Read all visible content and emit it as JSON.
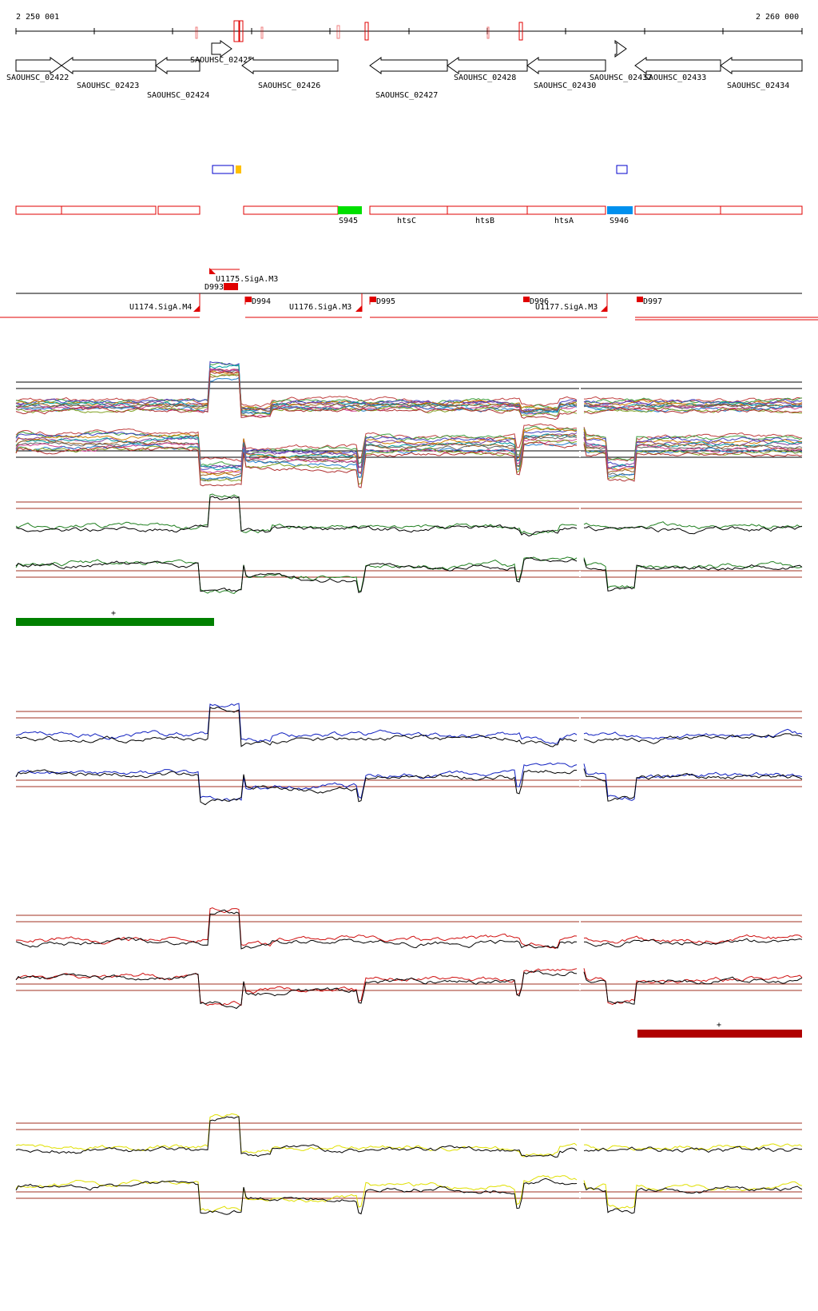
{
  "coords": {
    "start_label": "2 250 001",
    "end_label": "2 260 000"
  },
  "colors": {
    "cds": "#e00000",
    "green_bar": "#008000",
    "red_bar": "#b00000",
    "s945": "#00e000",
    "s946": "#0090ee",
    "promoter_box": "#0000cc",
    "small_box": "#ffc000",
    "green_profile": "#208020",
    "blue_profile": "#1020c0",
    "red_profile": "#d01010",
    "yellow_profile": "#e0e000",
    "ref_line": "#a03020"
  },
  "genes_row1": [
    {
      "label": "SAOUHSC_02422"
    },
    {
      "label": "SAOUHSC_02423"
    },
    {
      "label": "SAOUHSC_02424"
    },
    {
      "label": "SAOUHSC_02425"
    },
    {
      "label": "SAOUHSC_02426"
    },
    {
      "label": "SAOUHSC_02427"
    },
    {
      "label": "SAOUHSC_02428"
    },
    {
      "label": "SAOUHSC_02430"
    },
    {
      "label": "SAOUHSC_02432"
    },
    {
      "label": "SAOUHSC_02433"
    },
    {
      "label": "SAOUHSC_02434"
    }
  ],
  "operon_labels": {
    "s945": "S945",
    "htsC": "htsC",
    "htsB": "htsB",
    "htsA": "htsA",
    "s946": "S946"
  },
  "tu_labels": {
    "u1175": "U1175.SigA.M3",
    "d993": "D993",
    "d994": "D994",
    "u1174": "U1174.SigA.M4",
    "u1176": "U1176.SigA.M3",
    "d995": "D995",
    "d996": "D996",
    "u1177": "U1177.SigA.M3",
    "d997": "D997"
  },
  "plus_marks": {
    "green": "+",
    "red": "+"
  }
}
